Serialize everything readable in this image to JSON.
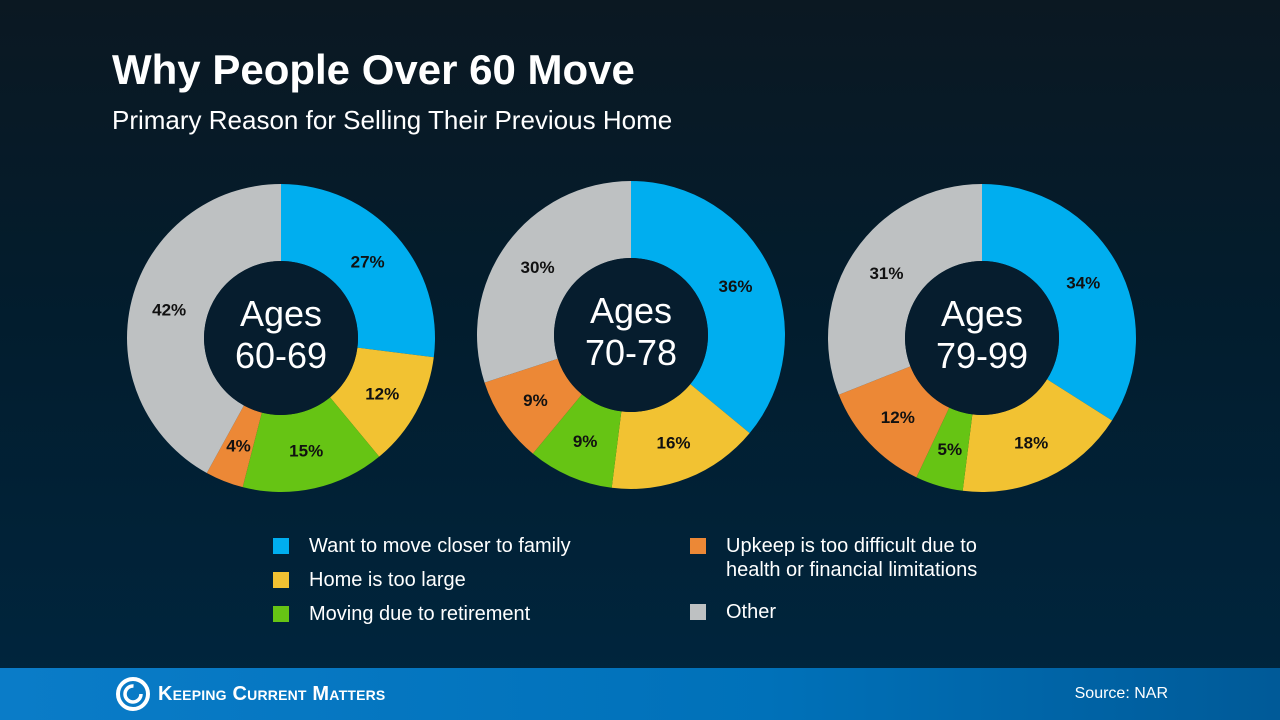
{
  "title": "Why People Over 60 Move",
  "subtitle": "Primary Reason for Selling Their Previous Home",
  "chart_data": [
    {
      "type": "pie",
      "center_label": [
        "Ages",
        "60-69"
      ],
      "categories": [
        "Want to move closer to family",
        "Home is too large",
        "Moving due to retirement",
        "Upkeep is too difficult due to health or financial limitations",
        "Other"
      ],
      "values": [
        27,
        12,
        15,
        4,
        42
      ]
    },
    {
      "type": "pie",
      "center_label": [
        "Ages",
        "70-78"
      ],
      "categories": [
        "Want to move closer to family",
        "Home is too large",
        "Moving due to retirement",
        "Upkeep is too difficult due to health or financial limitations",
        "Other"
      ],
      "values": [
        36,
        16,
        9,
        9,
        30
      ]
    },
    {
      "type": "pie",
      "center_label": [
        "Ages",
        "79-99"
      ],
      "categories": [
        "Want to move closer to family",
        "Home is too large",
        "Moving due to retirement",
        "Upkeep is too difficult due to health or financial limitations",
        "Other"
      ],
      "values": [
        34,
        18,
        5,
        12,
        31
      ]
    }
  ],
  "legend": [
    {
      "label": "Want to move closer to family",
      "color": "#00AEEF"
    },
    {
      "label": "Home is too large",
      "color": "#F2C232"
    },
    {
      "label": "Moving due to retirement",
      "color": "#66C414"
    },
    {
      "label": "Upkeep is too difficult due to",
      "label2": "health or financial limitations",
      "color": "#EC8836"
    },
    {
      "label": "Other",
      "color": "#BEC1C2"
    }
  ],
  "footer": {
    "brand": "Keeping Current Matters",
    "source": "Source: NAR"
  }
}
